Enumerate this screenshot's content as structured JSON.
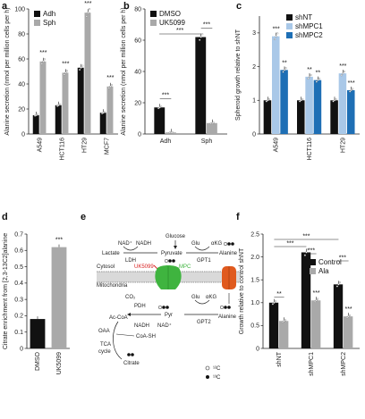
{
  "colors": {
    "black": "#111111",
    "grey": "#a9a9a9",
    "lightblue": "#a9c8e8",
    "blue": "#1e6fb5",
    "red": "#d81e1e",
    "green": "#3fb43f",
    "orange": "#e05a1e",
    "membrane": "#9a9a9a"
  },
  "panel_letters": [
    "a",
    "b",
    "c",
    "d",
    "e",
    "f"
  ],
  "chart_data": [
    {
      "panel": "a",
      "type": "bar",
      "ylabel": "Alanine secretion (nmol per million cells per h)",
      "ylim": [
        0,
        100
      ],
      "yticks": [
        0,
        20,
        40,
        60,
        80,
        100
      ],
      "categories": [
        "A549",
        "HCT116",
        "HT29",
        "MCF7"
      ],
      "legend": [
        "Adh",
        "Sph"
      ],
      "series": [
        {
          "name": "Adh",
          "color": "#111111",
          "values": [
            15,
            23,
            53,
            17
          ]
        },
        {
          "name": "Sph",
          "color": "#a9a9a9",
          "values": [
            58,
            49,
            97,
            38
          ]
        }
      ],
      "significance": [
        "***",
        "***",
        "***",
        "***"
      ]
    },
    {
      "panel": "b",
      "type": "bar",
      "ylabel": "Alanine secretion (nmol per million cells per h)",
      "ylim": [
        0,
        80
      ],
      "yticks": [
        0,
        20,
        40,
        60,
        80
      ],
      "categories": [
        "Adh",
        "Sph"
      ],
      "legend": [
        "DMSO",
        "UK5099"
      ],
      "series": [
        {
          "name": "DMSO",
          "color": "#111111",
          "values": [
            17,
            62
          ]
        },
        {
          "name": "UK5099",
          "color": "#a9a9a9",
          "values": [
            1,
            7
          ]
        }
      ],
      "significance": [
        "***",
        "***",
        "***"
      ]
    },
    {
      "panel": "c",
      "type": "bar",
      "ylabel": "Spheroid growth relative to shNT",
      "ylim": [
        0,
        3.5
      ],
      "yticks": [
        0,
        1,
        2,
        3
      ],
      "categories": [
        "A549",
        "HCT116",
        "HT29"
      ],
      "legend": [
        "shNT",
        "shMPC1",
        "shMPC2"
      ],
      "series": [
        {
          "name": "shNT",
          "color": "#111111",
          "values": [
            1.0,
            1.0,
            1.0
          ]
        },
        {
          "name": "shMPC1",
          "color": "#a9c8e8",
          "values": [
            2.9,
            1.7,
            1.8
          ]
        },
        {
          "name": "shMPC2",
          "color": "#1e6fb5",
          "values": [
            1.9,
            1.6,
            1.3
          ]
        }
      ],
      "significance": [
        "***",
        "**",
        "**",
        "**",
        "***",
        "***"
      ]
    },
    {
      "panel": "d",
      "type": "bar",
      "ylabel": "Citrate enrichment from [2,3-13C2]alanine",
      "ylim": [
        0,
        0.7
      ],
      "yticks": [
        0,
        0.1,
        0.2,
        0.3,
        0.4,
        0.5,
        0.6,
        0.7
      ],
      "categories": [
        "DMSO",
        "UK5099"
      ],
      "series": [
        {
          "values": [
            0.18,
            0.62
          ],
          "colors": [
            "#111111",
            "#a9a9a9"
          ]
        }
      ],
      "significance": [
        "***"
      ]
    },
    {
      "panel": "f",
      "type": "bar",
      "ylabel": "Growth relative to control shNT",
      "ylim": [
        0,
        2.5
      ],
      "yticks": [
        0,
        0.5,
        1.0,
        1.5,
        2.0,
        2.5
      ],
      "categories": [
        "shNT",
        "shMPC1",
        "shMPC2"
      ],
      "legend": [
        "Control",
        "Ala"
      ],
      "series": [
        {
          "name": "Control",
          "color": "#111111",
          "values": [
            1.0,
            2.1,
            1.4
          ]
        },
        {
          "name": "Ala",
          "color": "#a9a9a9",
          "values": [
            0.6,
            1.05,
            0.7
          ]
        }
      ],
      "significance": [
        "***",
        "***",
        "***",
        "***",
        "**",
        "***",
        "***"
      ]
    }
  ],
  "diagram": {
    "glucose": "Glucose",
    "nad_plus": "NAD⁺",
    "nadh": "NADH",
    "lactate": "Lactate",
    "pyruvate": "Pyruvate",
    "ldh": "LDH",
    "glu": "Glu",
    "akg": "αKG",
    "alanine": "Alanine",
    "gpt1": "GPT1",
    "gpt2": "GPT2",
    "cytosol": "Cytosol",
    "mitochondria": "Mitochondria",
    "uk5099": "UK5099",
    "mpc": "MPC",
    "co2": "CO₂",
    "pdh": "PDH",
    "pyr": "Pyr",
    "acoa": "Ac-CoA",
    "oaa": "OAA",
    "coash": "CoA-SH",
    "tca": "TCA",
    "cycle": "cycle",
    "citrate": "Citrate",
    "c12": "¹²C",
    "c13": "¹³C"
  }
}
